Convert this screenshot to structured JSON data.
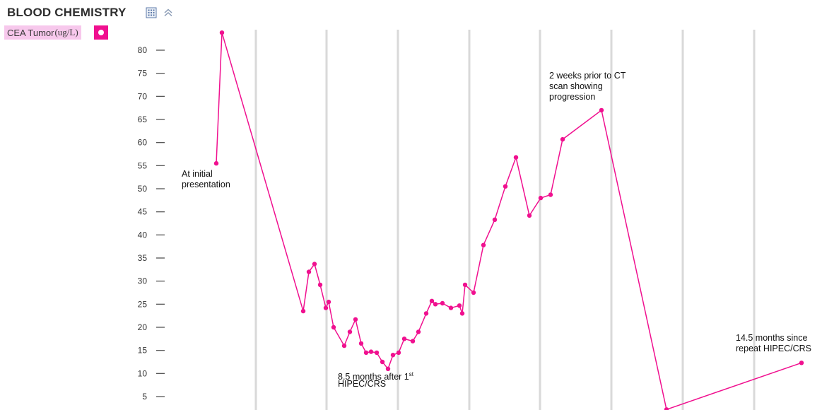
{
  "header": {
    "title": "BLOOD CHEMISTRY",
    "icons": [
      "table-view-icon",
      "chevron-up-icon"
    ]
  },
  "legend": {
    "label": "CEA Tumor",
    "unit": "(ug/L)",
    "color": "#f0108f",
    "background": "#f7c8ec"
  },
  "colors": {
    "series": "#f0108f",
    "gridline": "#d9d9d9",
    "tick": "#555555"
  },
  "chart_data": {
    "type": "line",
    "title": "BLOOD CHEMISTRY",
    "xlabel": "",
    "ylabel": "",
    "ylim": [
      2,
      87
    ],
    "yticks": [
      80,
      75,
      70,
      65,
      60,
      55,
      50,
      45,
      40,
      35,
      30,
      25,
      20,
      15,
      10,
      5
    ],
    "grid": "vertical",
    "legend_placement": "top-left",
    "series": [
      {
        "name": "CEA Tumor(ug/L)",
        "values": [
          55.5,
          83.8,
          23.5,
          32,
          33.7,
          29.2,
          24.2,
          25.5,
          20,
          16,
          19,
          21.7,
          16.5,
          14.5,
          14.7,
          14.5,
          12.5,
          11,
          14,
          14.5,
          17.5,
          17,
          19,
          23,
          25.7,
          25,
          25.2,
          24.2,
          24.7,
          23,
          29.2,
          27.5,
          37.8,
          43.3,
          50.5,
          56.8,
          44.2,
          48,
          48.7,
          60.7,
          67,
          2.2,
          12.3
        ]
      }
    ],
    "annotations": [
      {
        "lines": [
          "At initial",
          "presentation"
        ],
        "near_point": 0
      },
      {
        "lines": [
          "8.5 months after 1",
          "HIPEC/CRS"
        ],
        "superscript": "st",
        "near_point": 17
      },
      {
        "lines": [
          "2 weeks prior to CT",
          "scan showing",
          "progression"
        ],
        "near_point": 40
      },
      {
        "lines": [
          "14.5 months since",
          "repeat HIPEC/CRS"
        ],
        "near_point": 42
      }
    ]
  }
}
